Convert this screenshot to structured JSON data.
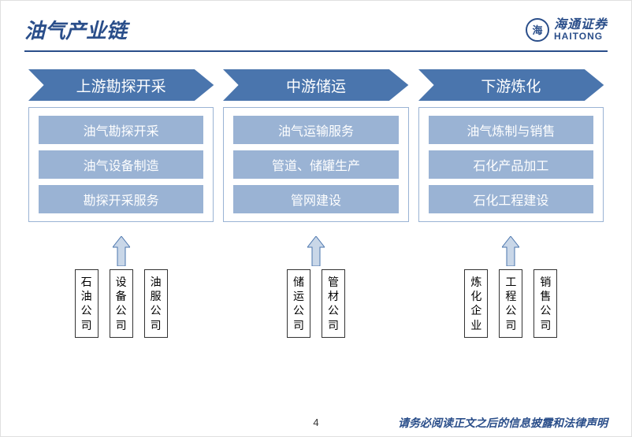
{
  "title": "油气产业链",
  "logo": {
    "cn": "海通证券",
    "en": "HAITONG",
    "glyph": "海"
  },
  "colors": {
    "primary": "#4a75ad",
    "primary_dark": "#2a4e8a",
    "box_fill": "#9ab3d4",
    "arrow_fill": "#c9d7e8",
    "text_white": "#ffffff",
    "border": "#333333"
  },
  "columns": [
    {
      "header": "上游勘探开采",
      "items": [
        "油气勘探开采",
        "油气设备制造",
        "勘探开采服务"
      ],
      "companies": [
        "石油公司",
        "设备公司",
        "油服公司"
      ]
    },
    {
      "header": "中游储运",
      "items": [
        "油气运输服务",
        "管道、储罐生产",
        "管网建设"
      ],
      "companies": [
        "储运公司",
        "管材公司"
      ]
    },
    {
      "header": "下游炼化",
      "items": [
        "油气炼制与销售",
        "石化产品加工",
        "石化工程建设"
      ],
      "companies": [
        "炼化企业",
        "工程公司",
        "销售公司"
      ]
    }
  ],
  "footer": {
    "page": "4",
    "disclaimer": "请务必阅读正文之后的信息披露和法律声明"
  }
}
